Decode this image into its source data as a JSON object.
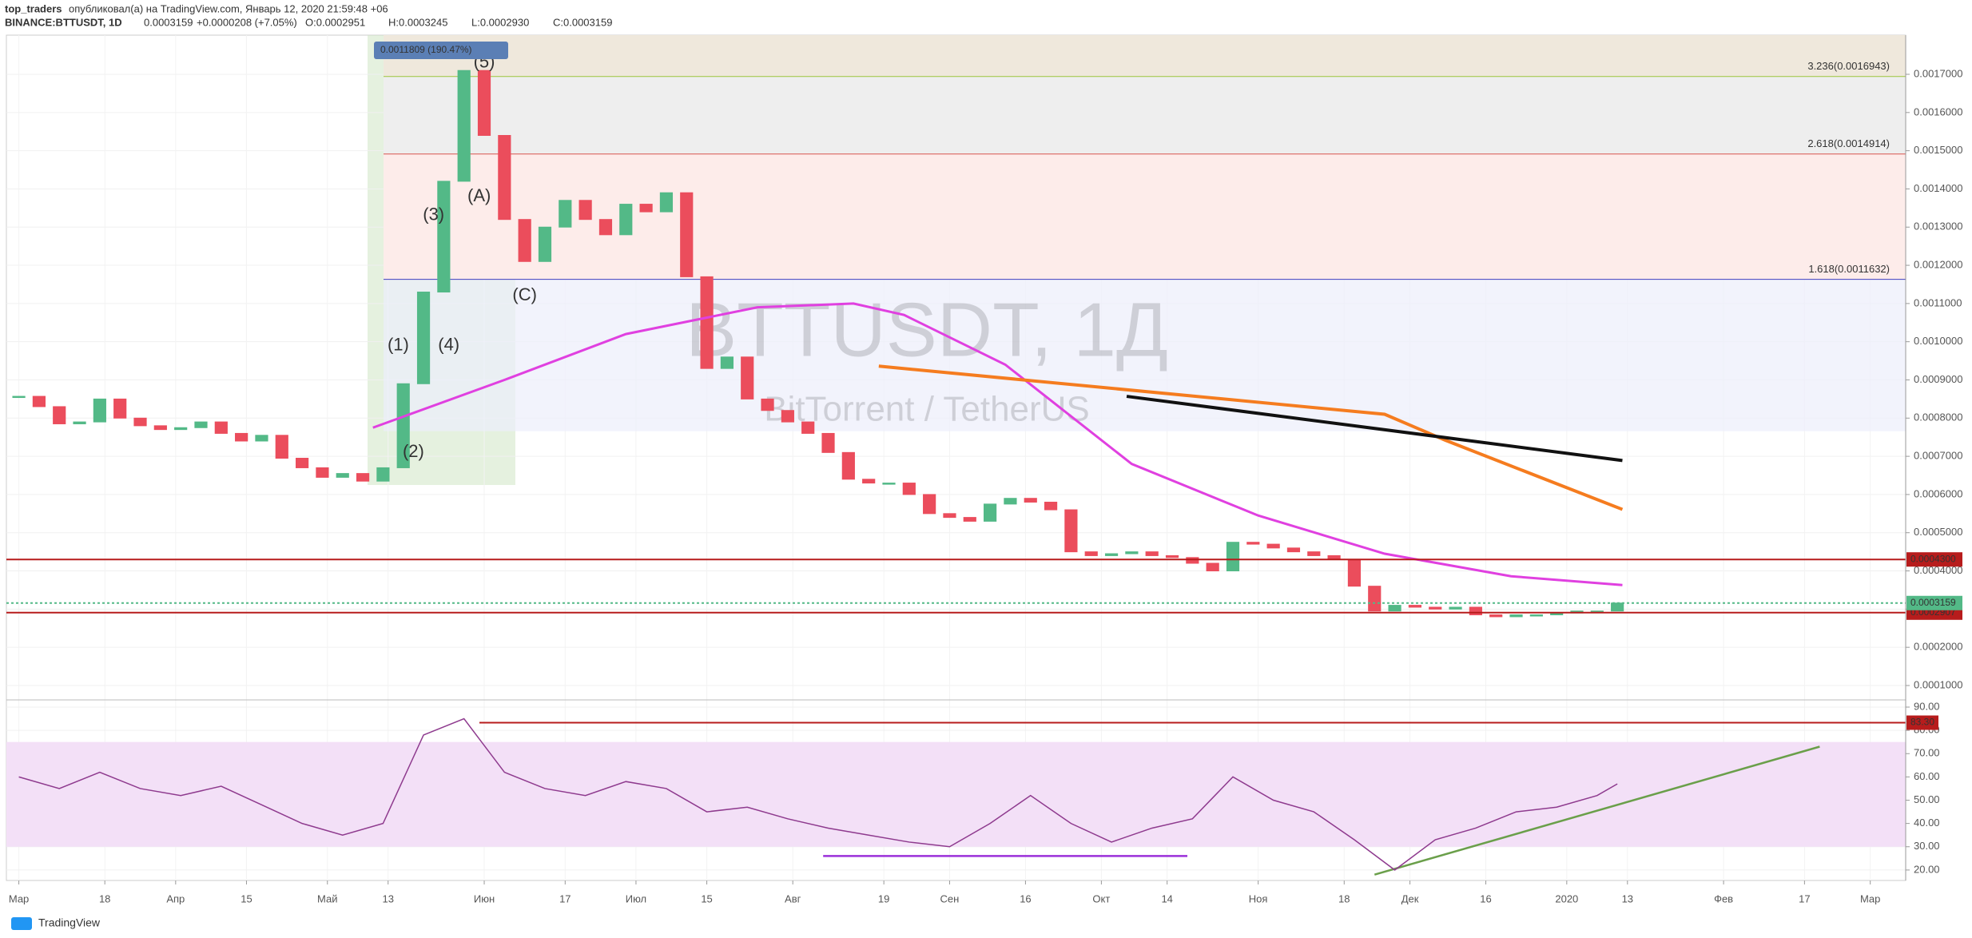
{
  "header": {
    "publisher": "top_traders",
    "published": "опубликовал(а) на TradingView.com, Январь 12, 2020 21:59:48 +06",
    "symbol": "BINANCE:BTTUSDT, 1D",
    "last": "0.0003159",
    "change": "+0.0000208 (+7.05%)",
    "ohlc": [
      "O:0.0002951",
      "H:0.0003245",
      "L:0.0002930",
      "C:0.0003159"
    ]
  },
  "chart_data": [
    {
      "type": "candlestick",
      "watermark": "BTTUSDT, 1Д",
      "subtitle": "BitTorrent / TetherUS",
      "tooltip": "0.0011809 (190.47%)",
      "up_color": "#53b987",
      "down_color": "#eb4d5c",
      "x": [
        0,
        4,
        8,
        12,
        16,
        20,
        24,
        28,
        32,
        36,
        40,
        44,
        48,
        52,
        56,
        60,
        64,
        68,
        72,
        76,
        80,
        84,
        88,
        92,
        96,
        100,
        104,
        108,
        112,
        116,
        120,
        124,
        128,
        132,
        136,
        140,
        144,
        148,
        152,
        156,
        160,
        164,
        168,
        172,
        176,
        180,
        184,
        188,
        192,
        196,
        200,
        204,
        208,
        212,
        216,
        220,
        224,
        228,
        232,
        236,
        240,
        244,
        248,
        252,
        256,
        260,
        264,
        268,
        272,
        276,
        280,
        284,
        288,
        292,
        296,
        300,
        304,
        308,
        312,
        316
      ],
      "close": [
        0.000857,
        0.00083,
        0.000785,
        0.00079,
        0.00085,
        0.0008,
        0.00078,
        0.00077,
        0.000775,
        0.00079,
        0.00076,
        0.00074,
        0.000755,
        0.000695,
        0.00067,
        0.000645,
        0.000655,
        0.000635,
        0.00067,
        0.00089,
        0.00113,
        0.00142,
        0.00171,
        0.00154,
        0.00132,
        0.00121,
        0.0013,
        0.00137,
        0.00132,
        0.00128,
        0.00136,
        0.00134,
        0.00139,
        0.00117,
        0.00093,
        0.00096,
        0.00085,
        0.00082,
        0.00079,
        0.00076,
        0.00071,
        0.00064,
        0.00063,
        0.00063,
        0.0006,
        0.00055,
        0.00054,
        0.00053,
        0.000575,
        0.00059,
        0.00058,
        0.00056,
        0.00045,
        0.00044,
        0.000445,
        0.00045,
        0.00044,
        0.000435,
        0.00042,
        0.0004,
        0.000475,
        0.00047,
        0.00046,
        0.00045,
        0.00044,
        0.00043,
        0.00036,
        0.000295,
        0.00031,
        0.000305,
        0.0003,
        0.000305,
        0.000285,
        0.00028,
        0.000285,
        0.000285,
        0.00029,
        0.000295,
        0.000295,
        0.0003159
      ],
      "xlim": [
        -2.46,
        373
      ],
      "ylim": [
        6.44e-05,
        0.0018025
      ],
      "yticks": [
        {
          "value": 0.0001,
          "label": "0.0001000"
        },
        {
          "value": 0.0002,
          "label": "0.0002000"
        },
        {
          "value": 0.0003,
          "label": "0.0003000"
        },
        {
          "value": 0.0004,
          "label": "0.0004000"
        },
        {
          "value": 0.0005,
          "label": "0.0005000"
        },
        {
          "value": 0.0006,
          "label": "0.0006000"
        },
        {
          "value": 0.0007,
          "label": "0.0007000"
        },
        {
          "value": 0.0008,
          "label": "0.0008000"
        },
        {
          "value": 0.0009,
          "label": "0.0009000"
        },
        {
          "value": 0.001,
          "label": "0.0010000"
        },
        {
          "value": 0.0011,
          "label": "0.0011000"
        },
        {
          "value": 0.0012,
          "label": "0.0012000"
        },
        {
          "value": 0.0013,
          "label": "0.0013000"
        },
        {
          "value": 0.0014,
          "label": "0.0014000"
        },
        {
          "value": 0.0015,
          "label": "0.0015000"
        },
        {
          "value": 0.0016,
          "label": "0.0016000"
        },
        {
          "value": 0.0017,
          "label": "0.0017000"
        }
      ],
      "xticks": [
        {
          "value": 0,
          "label": "Мар"
        },
        {
          "value": 17,
          "label": "18"
        },
        {
          "value": 31,
          "label": "Апр"
        },
        {
          "value": 45,
          "label": "15"
        },
        {
          "value": 61,
          "label": "Май"
        },
        {
          "value": 73,
          "label": "13"
        },
        {
          "value": 92,
          "label": "Июн"
        },
        {
          "value": 108,
          "label": "17"
        },
        {
          "value": 122,
          "label": "Июл"
        },
        {
          "value": 136,
          "label": "15"
        },
        {
          "value": 153,
          "label": "Авг"
        },
        {
          "value": 171,
          "label": "19"
        },
        {
          "value": 184,
          "label": "Сен"
        },
        {
          "value": 199,
          "label": "16"
        },
        {
          "value": 214,
          "label": "Окт"
        },
        {
          "value": 227,
          "label": "14"
        },
        {
          "value": 245,
          "label": "Ноя"
        },
        {
          "value": 262,
          "label": "18"
        },
        {
          "value": 275,
          "label": "Дек"
        },
        {
          "value": 290,
          "label": "16"
        },
        {
          "value": 306,
          "label": "2020"
        },
        {
          "value": 318,
          "label": "13"
        },
        {
          "value": 337,
          "label": "Фев"
        },
        {
          "value": 353,
          "label": "17"
        },
        {
          "value": 366,
          "label": "Мар"
        }
      ],
      "ma": {
        "color": "#e040e0",
        "x": [
          70,
          96,
          120,
          146,
          165,
          175,
          195,
          220,
          245,
          270,
          295,
          317
        ],
        "values": [
          0.000775,
          0.0009,
          0.00102,
          0.00109,
          0.0011,
          0.00107,
          0.00094,
          0.00068,
          0.000545,
          0.000445,
          0.000386,
          0.000363
        ]
      },
      "trendlines": [
        {
          "color": "#f57c1f",
          "x": [
            170,
            270,
            282,
            317
          ],
          "values": [
            0.000936,
            0.00081,
            0.000742,
            0.000561
          ]
        },
        {
          "color": "#111111",
          "x": [
            219,
            317
          ],
          "values": [
            0.000857,
            0.000689
          ]
        }
      ],
      "fib": [
        {
          "value": 0.0016943,
          "label": "3.236(0.0016943)",
          "color": "#9bc53d",
          "fill": "#eeeeee"
        },
        {
          "value": 0.0014914,
          "label": "2.618(0.0014914)",
          "color": "#d9534f",
          "fill": "#fdecea"
        },
        {
          "value": 0.0011632,
          "label": "1.618(0.0011632)",
          "color": "#3f3fbf",
          "fill": "#eceefb"
        }
      ],
      "levels": [
        {
          "value": 0.00043,
          "label": "0.0004300",
          "color": "#b71c1c"
        },
        {
          "value": 0.0002907,
          "label": "0.0002907",
          "color": "#b71c1c"
        },
        {
          "value": 0.0003159,
          "label": "0.0003159",
          "color": "#53b987"
        }
      ],
      "annotations": [
        {
          "text": "(1)",
          "x": 75,
          "y": 0.00099,
          "color": "#666"
        },
        {
          "text": "(2)",
          "x": 78,
          "y": 0.00071,
          "color": "#666"
        },
        {
          "text": "(3)",
          "x": 82,
          "y": 0.00133,
          "color": "#666"
        },
        {
          "text": "(4)",
          "x": 85,
          "y": 0.00099,
          "color": "#666"
        },
        {
          "text": "(5)",
          "x": 92,
          "y": 0.00173,
          "color": "#666"
        },
        {
          "text": "(A)",
          "x": 91,
          "y": 0.00138,
          "color": "#c0392b"
        },
        {
          "text": "(C)",
          "x": 100,
          "y": 0.00112,
          "color": "#c0392b"
        }
      ]
    },
    {
      "type": "line",
      "color": "#8e3a8e",
      "band": [
        30,
        75
      ],
      "band_color": "#f3e0f7",
      "x": [
        0,
        8,
        16,
        24,
        32,
        40,
        48,
        56,
        64,
        72,
        80,
        88,
        96,
        104,
        112,
        120,
        128,
        136,
        144,
        152,
        160,
        168,
        176,
        184,
        192,
        200,
        208,
        216,
        224,
        232,
        240,
        248,
        256,
        264,
        272,
        280,
        288,
        296,
        304,
        312,
        316
      ],
      "values": [
        60,
        55,
        62,
        55,
        52,
        56,
        48,
        40,
        35,
        40,
        78,
        85,
        62,
        55,
        52,
        58,
        55,
        45,
        47,
        42,
        38,
        35,
        32,
        30,
        40,
        52,
        40,
        32,
        38,
        42,
        60,
        50,
        45,
        33,
        20,
        33,
        38,
        45,
        47,
        52,
        57
      ],
      "xlim": [
        -2.46,
        373
      ],
      "ylim": [
        15.5,
        92.4
      ],
      "yticks": [
        {
          "value": 20,
          "label": "20.00"
        },
        {
          "value": 30,
          "label": "30.00"
        },
        {
          "value": 40,
          "label": "40.00"
        },
        {
          "value": 50,
          "label": "50.00"
        },
        {
          "value": 60,
          "label": "60.00"
        },
        {
          "value": 70,
          "label": "70.00"
        },
        {
          "value": 80,
          "label": "80.00"
        },
        {
          "value": 90,
          "label": "90.00"
        }
      ],
      "level": {
        "value": 83.3,
        "label": "83.30",
        "color": "#b71c1c"
      },
      "trendlines": [
        {
          "color": "#6a9f4a",
          "x": [
            268,
            356
          ],
          "values": [
            18,
            73
          ]
        },
        {
          "color": "#9b30d9",
          "x": [
            159,
            231
          ],
          "values": [
            26,
            26
          ]
        }
      ]
    }
  ],
  "footer": "TradingView"
}
